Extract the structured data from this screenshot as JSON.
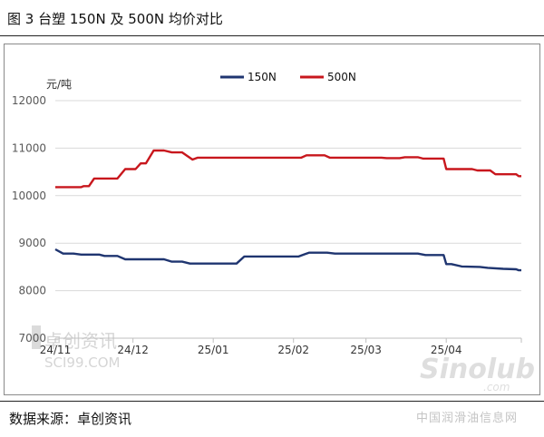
{
  "figure_title": "图 3 台塑 150N 及 500N 均价对比",
  "source": "数据来源：卓创资讯",
  "watermarks": {
    "left_cn": "卓创资讯",
    "left_en": "SCI99.COM",
    "right_logo": "Sinolub",
    "right_logo_sub": ".com",
    "right_cn": "中国润滑油信息网"
  },
  "colors": {
    "series_150N": "#1f3570",
    "series_500N": "#c8171d",
    "grid": "#d9d9d9",
    "axis_text": "#595959"
  },
  "chart_data": {
    "type": "line",
    "title": "",
    "ylabel": "元/吨",
    "xlabel": "",
    "ylim": [
      7000,
      12000
    ],
    "yticks": [
      7000,
      8000,
      9000,
      10000,
      11000,
      12000
    ],
    "x_range": [
      "2024-11-01",
      "2025-04-30"
    ],
    "xticks": [
      {
        "label": "24/11",
        "date": "2024-11-01"
      },
      {
        "label": "24/12",
        "date": "2024-12-01"
      },
      {
        "label": "25/01",
        "date": "2025-01-01"
      },
      {
        "label": "25/02",
        "date": "2025-02-01"
      },
      {
        "label": "25/03",
        "date": "2025-03-01"
      },
      {
        "label": "25/04",
        "date": "2025-04-01"
      }
    ],
    "legend_position": "top-center",
    "grid": "horizontal",
    "series": [
      {
        "name": "150N",
        "color": "#1f3570",
        "points": [
          [
            "2024-11-01",
            8870
          ],
          [
            "2024-11-04",
            8780
          ],
          [
            "2024-11-08",
            8780
          ],
          [
            "2024-11-11",
            8760
          ],
          [
            "2024-11-18",
            8760
          ],
          [
            "2024-11-20",
            8730
          ],
          [
            "2024-11-25",
            8730
          ],
          [
            "2024-11-28",
            8660
          ],
          [
            "2024-12-13",
            8660
          ],
          [
            "2024-12-16",
            8610
          ],
          [
            "2024-12-20",
            8610
          ],
          [
            "2024-12-23",
            8570
          ],
          [
            "2025-01-08",
            8570
          ],
          [
            "2025-01-10",
            8570
          ],
          [
            "2025-01-13",
            8720
          ],
          [
            "2025-02-03",
            8720
          ],
          [
            "2025-02-05",
            8760
          ],
          [
            "2025-02-07",
            8800
          ],
          [
            "2025-02-14",
            8800
          ],
          [
            "2025-02-17",
            8780
          ],
          [
            "2025-02-28",
            8780
          ],
          [
            "2025-03-21",
            8780
          ],
          [
            "2025-03-24",
            8750
          ],
          [
            "2025-03-31",
            8750
          ],
          [
            "2025-04-01",
            8560
          ],
          [
            "2025-04-03",
            8560
          ],
          [
            "2025-04-07",
            8510
          ],
          [
            "2025-04-14",
            8500
          ],
          [
            "2025-04-17",
            8480
          ],
          [
            "2025-04-23",
            8460
          ],
          [
            "2025-04-28",
            8450
          ],
          [
            "2025-04-29",
            8430
          ],
          [
            "2025-04-30",
            8430
          ]
        ]
      },
      {
        "name": "500N",
        "color": "#c8171d",
        "points": [
          [
            "2024-11-01",
            10180
          ],
          [
            "2024-11-11",
            10180
          ],
          [
            "2024-11-12",
            10200
          ],
          [
            "2024-11-14",
            10200
          ],
          [
            "2024-11-16",
            10360
          ],
          [
            "2024-11-25",
            10360
          ],
          [
            "2024-11-28",
            10560
          ],
          [
            "2024-12-02",
            10560
          ],
          [
            "2024-12-04",
            10680
          ],
          [
            "2024-12-06",
            10680
          ],
          [
            "2024-12-09",
            10950
          ],
          [
            "2024-12-13",
            10950
          ],
          [
            "2024-12-16",
            10910
          ],
          [
            "2024-12-20",
            10910
          ],
          [
            "2024-12-24",
            10760
          ],
          [
            "2024-12-26",
            10800
          ],
          [
            "2025-02-04",
            10800
          ],
          [
            "2025-02-06",
            10850
          ],
          [
            "2025-02-13",
            10850
          ],
          [
            "2025-02-15",
            10800
          ],
          [
            "2025-03-07",
            10800
          ],
          [
            "2025-03-09",
            10790
          ],
          [
            "2025-03-14",
            10790
          ],
          [
            "2025-03-16",
            10810
          ],
          [
            "2025-03-21",
            10810
          ],
          [
            "2025-03-23",
            10780
          ],
          [
            "2025-03-31",
            10780
          ],
          [
            "2025-04-01",
            10560
          ],
          [
            "2025-04-11",
            10560
          ],
          [
            "2025-04-13",
            10530
          ],
          [
            "2025-04-18",
            10530
          ],
          [
            "2025-04-20",
            10450
          ],
          [
            "2025-04-28",
            10450
          ],
          [
            "2025-04-29",
            10410
          ],
          [
            "2025-04-30",
            10410
          ]
        ]
      }
    ]
  }
}
